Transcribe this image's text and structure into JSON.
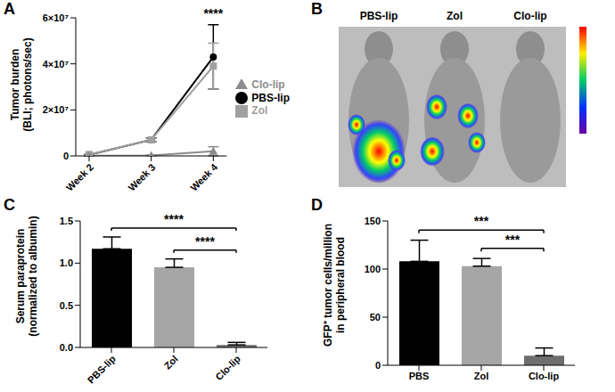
{
  "chart_data": [
    {
      "panel": "A",
      "type": "line",
      "categories": [
        "Week 2",
        "Week 3",
        "Week 4"
      ],
      "y_label": [
        "Tumor burden",
        "(BLI; photons/sec)"
      ],
      "ylim": [
        0,
        60000000
      ],
      "yticks": [
        0,
        {
          "value": 20000000,
          "label": "2×10⁷"
        },
        {
          "value": 40000000,
          "label": "4×10⁷"
        },
        {
          "value": 60000000,
          "label": "6×10⁷"
        }
      ],
      "legend": "right",
      "series": [
        {
          "name": "PBS-lip",
          "color": "#000000",
          "marker": "circle",
          "values": [
            500000,
            7000000,
            43000000
          ],
          "errors": [
            300000,
            800000,
            14000000
          ]
        },
        {
          "name": "Zol",
          "color": "#a0a0a0",
          "marker": "square",
          "values": [
            600000,
            7000000,
            39000000
          ],
          "errors": [
            300000,
            700000,
            10000000
          ]
        },
        {
          "name": "Clo-lip",
          "color": "#8c8c8c",
          "marker": "triangle",
          "values": [
            100000,
            200000,
            2000000
          ],
          "errors": [
            100000,
            200000,
            2000000
          ]
        }
      ],
      "annotations": [
        {
          "text": "****",
          "at": "Week 4"
        }
      ]
    },
    {
      "panel": "B",
      "type": "image",
      "labels": [
        "PBS-lip",
        "Zol",
        "Clo-lip"
      ]
    },
    {
      "panel": "C",
      "type": "bar",
      "categories": [
        "PBS-lip",
        "Zol",
        "Clo-lip"
      ],
      "values": [
        1.17,
        0.95,
        0.03
      ],
      "errors": [
        0.14,
        0.1,
        0.03
      ],
      "colors": [
        "#000000",
        "#a6a6a6",
        "#6e6e6e"
      ],
      "y_label": [
        "Serum paraprotein",
        "(normalized to albumin)"
      ],
      "ylim": [
        0,
        1.5
      ],
      "yticks": [
        {
          "value": 0,
          "label": "0.0"
        },
        {
          "value": 0.5,
          "label": "0.5"
        },
        {
          "value": 1,
          "label": "1.0"
        },
        {
          "value": 1.5,
          "label": "1.5"
        }
      ],
      "annotations": [
        {
          "text": "****",
          "from": "PBS-lip",
          "to": "Clo-lip"
        },
        {
          "text": "****",
          "from": "Zol",
          "to": "Clo-lip"
        }
      ]
    },
    {
      "panel": "D",
      "type": "bar",
      "categories": [
        "PBS",
        "Zol",
        "Clo-lip"
      ],
      "values": [
        108,
        103,
        10
      ],
      "errors": [
        22,
        8,
        8
      ],
      "colors": [
        "#000000",
        "#a6a6a6",
        "#6e6e6e"
      ],
      "y_label": [
        "GFP⁺ tumor cells/million",
        "in peripheral blood"
      ],
      "ylim": [
        0,
        150
      ],
      "yticks": [
        0,
        50,
        100,
        150
      ],
      "annotations": [
        {
          "text": "***",
          "from": "PBS",
          "to": "Clo-lip"
        },
        {
          "text": "***",
          "from": "Zol",
          "to": "Clo-lip"
        }
      ]
    }
  ]
}
